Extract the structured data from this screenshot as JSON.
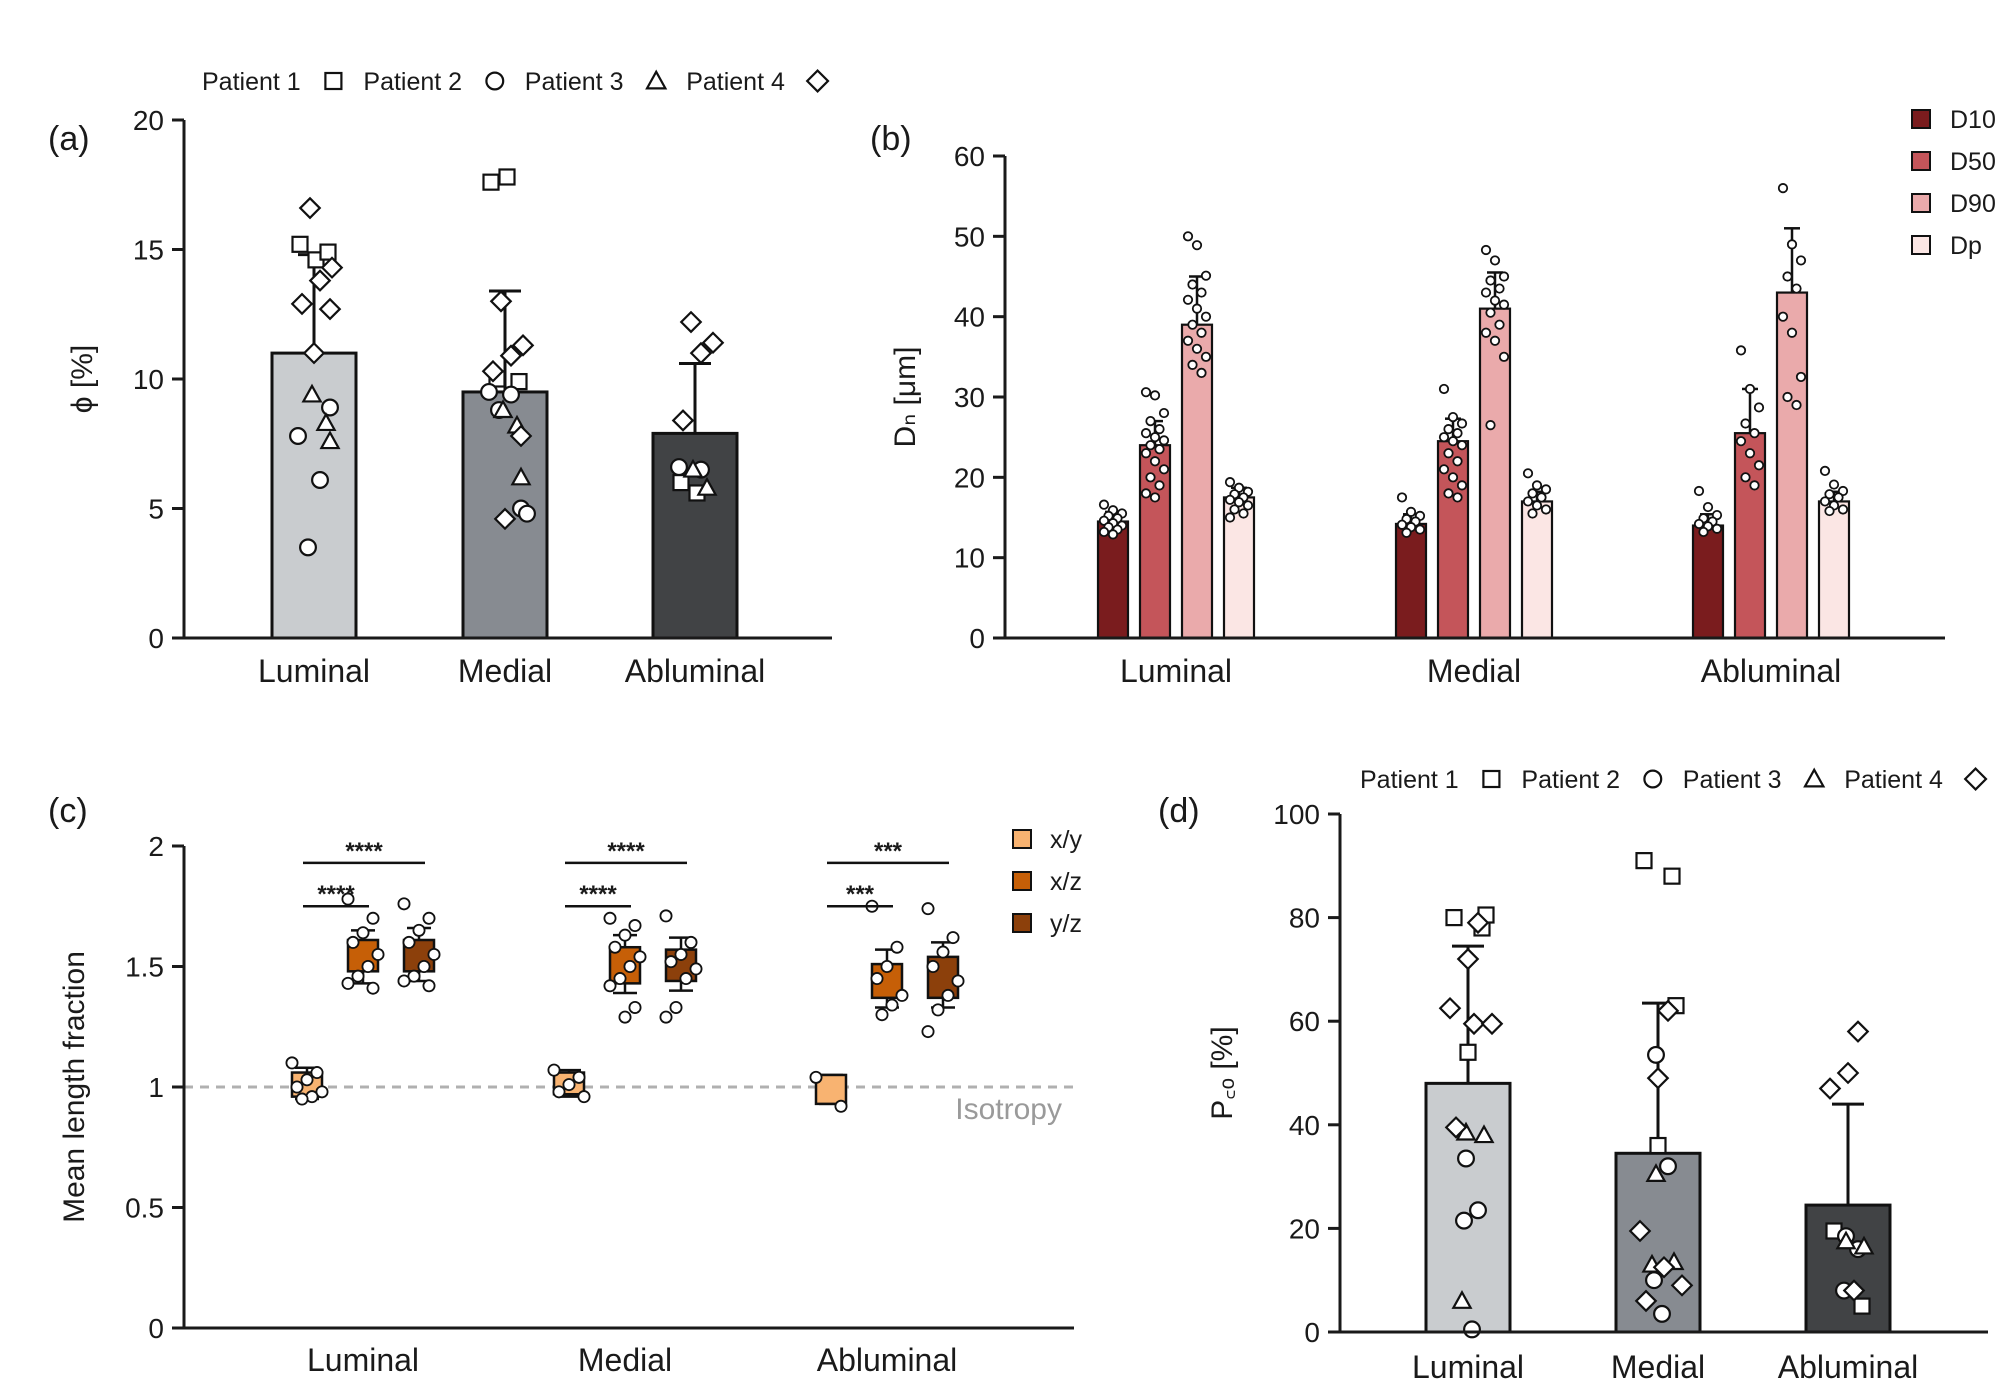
{
  "chart_data": [
    {
      "panel": "(a)",
      "type": "bar",
      "categories": [
        "Luminal",
        "Medial",
        "Abluminal"
      ],
      "ylabel": "ϕ [%]",
      "ylim": [
        0,
        20
      ],
      "yticks": [
        0,
        5,
        10,
        15,
        20
      ],
      "legend": [
        "Patient 1",
        "Patient 2",
        "Patient 3",
        "Patient 4"
      ],
      "legend_position": "top",
      "values": [
        11.0,
        9.5,
        7.9
      ],
      "errors": [
        3.8,
        3.9,
        2.7
      ],
      "colors": [
        "#c9cccf",
        "#878b91",
        "#414345"
      ],
      "points": [
        {
          "p1": [
            15.2,
            14.6,
            14.9
          ],
          "p2": [
            7.8,
            6.1,
            3.5,
            8.9
          ],
          "p3": [
            9.4,
            8.3,
            7.6
          ],
          "p4": [
            16.6,
            14.3,
            13.8,
            12.9,
            12.7,
            11.0
          ]
        },
        {
          "p1": [
            17.6,
            17.8,
            9.9,
            10.0
          ],
          "p2": [
            9.5,
            9.4,
            8.8,
            5.0,
            4.8
          ],
          "p3": [
            8.8,
            8.2,
            6.2
          ],
          "p4": [
            13.0,
            11.3,
            10.9,
            10.3,
            7.8,
            4.6
          ]
        },
        {
          "p1": [
            6.0,
            5.6
          ],
          "p2": [
            6.6,
            6.5
          ],
          "p3": [
            6.5,
            5.8
          ],
          "p4": [
            12.2,
            11.4,
            11.0,
            8.4
          ]
        }
      ]
    },
    {
      "panel": "(b)",
      "type": "bar",
      "categories": [
        "Luminal",
        "Medial",
        "Abluminal"
      ],
      "ylabel": "Dₙ [μm]",
      "ylim": [
        0,
        60
      ],
      "yticks": [
        0,
        10,
        20,
        30,
        40,
        50,
        60
      ],
      "series": [
        {
          "name": "D10",
          "color": "#7a1c1e",
          "values": [
            14.5,
            14.2,
            14.0
          ],
          "errors": [
            1.2,
            1.2,
            1.4
          ]
        },
        {
          "name": "D50",
          "color": "#c4555a",
          "values": [
            24.0,
            24.5,
            25.5
          ],
          "errors": [
            3.0,
            2.8,
            5.5
          ]
        },
        {
          "name": "D90",
          "color": "#eaaaab",
          "values": [
            39.0,
            41.0,
            43.0
          ],
          "errors": [
            6.0,
            4.5,
            8.0
          ]
        },
        {
          "name": "Dp",
          "color": "#fbe6e4",
          "values": [
            17.5,
            17.0,
            17.0
          ],
          "errors": [
            1.2,
            1.2,
            1.2
          ]
        }
      ],
      "points": [
        [
          [
            16.6,
            15.9,
            15.5,
            15.2,
            14.9,
            14.6,
            14.3,
            14.0,
            13.8,
            13.5,
            13.2,
            12.9
          ],
          [
            30.6,
            30.2,
            28.0,
            27.0,
            26.0,
            25.5,
            25.0,
            24.6,
            24.0,
            23.5,
            23.0,
            22.0,
            21.0,
            20.0,
            19.0,
            18.0,
            17.5
          ],
          [
            50.0,
            48.9,
            45.1,
            44.0,
            43.0,
            42.1,
            41.0,
            40.0,
            39.0,
            38.0,
            37.0,
            36.0,
            35.0,
            34.0,
            33.0
          ],
          [
            19.4,
            18.7,
            18.2,
            17.9,
            17.5,
            17.2,
            16.9,
            16.5,
            16.0,
            15.5,
            15.0
          ]
        ],
        [
          [
            17.5,
            15.7,
            15.2,
            14.8,
            14.5,
            14.1,
            13.8,
            13.5,
            13.1
          ],
          [
            31.0,
            27.5,
            26.7,
            26.0,
            25.5,
            25.0,
            24.5,
            24.0,
            23.0,
            22.0,
            21.0,
            20.0,
            19.0,
            18.0,
            17.5
          ],
          [
            48.3,
            47.0,
            45.0,
            44.5,
            43.5,
            43.0,
            42.0,
            41.5,
            40.5,
            39.0,
            38.0,
            37.0,
            35.0,
            26.5
          ],
          [
            20.5,
            19.0,
            18.5,
            18.0,
            17.5,
            17.0,
            16.5,
            16.0,
            15.5
          ]
        ],
        [
          [
            18.3,
            16.3,
            15.3,
            14.9,
            14.5,
            14.2,
            13.9,
            13.6,
            13.2
          ],
          [
            35.8,
            31.0,
            28.7,
            26.7,
            25.5,
            24.5,
            23.0,
            21.5,
            20.0,
            19.0
          ],
          [
            56.0,
            49.0,
            47.0,
            45.0,
            43.5,
            40.0,
            38.0,
            32.5,
            30.0,
            29.0
          ],
          [
            20.8,
            19.1,
            18.3,
            17.9,
            17.5,
            17.0,
            16.5,
            16.0,
            15.8
          ]
        ]
      ]
    },
    {
      "panel": "(c)",
      "type": "box",
      "categories": [
        "Luminal",
        "Medial",
        "Abluminal"
      ],
      "ylabel": "Mean length fraction",
      "ylim": [
        0,
        2
      ],
      "yticks": [
        "0",
        "0.5",
        "1",
        "1.5",
        "2"
      ],
      "reference_line": {
        "y": 1,
        "label": "Isotropy"
      },
      "series": [
        {
          "name": "x/y",
          "color": "#f8b371"
        },
        {
          "name": "x/z",
          "color": "#c65f07"
        },
        {
          "name": "y/z",
          "color": "#8c400b"
        }
      ],
      "boxes": [
        [
          {
            "q1": 0.96,
            "median": 1.01,
            "q3": 1.06,
            "low": 0.95,
            "high": 1.08
          },
          {
            "q1": 1.48,
            "median": 1.56,
            "q3": 1.61,
            "low": 1.43,
            "high": 1.65
          },
          {
            "q1": 1.48,
            "median": 1.56,
            "q3": 1.61,
            "low": 1.44,
            "high": 1.66
          }
        ],
        [
          {
            "q1": 0.97,
            "median": 1.0,
            "q3": 1.06,
            "low": 0.96,
            "high": 1.07
          },
          {
            "q1": 1.43,
            "median": 1.51,
            "q3": 1.58,
            "low": 1.39,
            "high": 1.63
          },
          {
            "q1": 1.44,
            "median": 1.51,
            "q3": 1.57,
            "low": 1.4,
            "high": 1.62
          }
        ],
        [
          {
            "q1": 0.93,
            "median": 0.99,
            "q3": 1.05,
            "low": 0.93,
            "high": 1.05
          },
          {
            "q1": 1.37,
            "median": 1.45,
            "q3": 1.51,
            "low": 1.33,
            "high": 1.57
          },
          {
            "q1": 1.37,
            "median": 1.47,
            "q3": 1.54,
            "low": 1.33,
            "high": 1.6
          }
        ]
      ],
      "points": [
        [
          [
            1.1,
            1.06,
            1.03,
            1.0,
            0.98,
            0.96,
            0.95
          ],
          [
            1.78,
            1.7,
            1.64,
            1.6,
            1.55,
            1.5,
            1.46,
            1.43,
            1.41
          ],
          [
            1.76,
            1.7,
            1.65,
            1.6,
            1.55,
            1.5,
            1.46,
            1.44,
            1.42
          ]
        ],
        [
          [
            1.07,
            1.04,
            1.01,
            0.98,
            0.96
          ],
          [
            1.7,
            1.67,
            1.63,
            1.58,
            1.54,
            1.5,
            1.45,
            1.42,
            1.33,
            1.29
          ],
          [
            1.71,
            1.6,
            1.55,
            1.52,
            1.49,
            1.45,
            1.33,
            1.29
          ]
        ],
        [
          [
            1.04,
            0.92
          ],
          [
            1.75,
            1.58,
            1.5,
            1.45,
            1.38,
            1.34,
            1.3
          ],
          [
            1.74,
            1.62,
            1.56,
            1.5,
            1.44,
            1.38,
            1.32,
            1.23
          ]
        ]
      ],
      "significance": [
        {
          "group": 0,
          "pair": [
            0,
            2
          ],
          "label": "****",
          "y": 1.98
        },
        {
          "group": 0,
          "pair": [
            0,
            1
          ],
          "label": "****",
          "y": 1.8
        },
        {
          "group": 1,
          "pair": [
            0,
            2
          ],
          "label": "****",
          "y": 1.98
        },
        {
          "group": 1,
          "pair": [
            0,
            1
          ],
          "label": "****",
          "y": 1.8
        },
        {
          "group": 2,
          "pair": [
            0,
            2
          ],
          "label": "***",
          "y": 1.98
        },
        {
          "group": 2,
          "pair": [
            0,
            1
          ],
          "label": "***",
          "y": 1.8
        }
      ]
    },
    {
      "panel": "(d)",
      "type": "bar",
      "categories": [
        "Luminal",
        "Medial",
        "Abluminal"
      ],
      "ylabel": "P꜀ₒ [%]",
      "ylim": [
        0,
        100
      ],
      "yticks": [
        0,
        20,
        40,
        60,
        80,
        100
      ],
      "legend": [
        "Patient 1",
        "Patient 2",
        "Patient 3",
        "Patient 4"
      ],
      "legend_position": "top",
      "values": [
        48.0,
        34.5,
        24.5
      ],
      "errors": [
        26.5,
        29.0,
        19.5
      ],
      "colors": [
        "#c9cccf",
        "#878b91",
        "#414345"
      ],
      "points": [
        {
          "p1": [
            80.0,
            78.0,
            80.5,
            54.0
          ],
          "p2": [
            33.5,
            23.5,
            21.5,
            0.5
          ],
          "p3": [
            38.5,
            38.0,
            6.0
          ],
          "p4": [
            79.0,
            72.0,
            62.5,
            59.5,
            59.5,
            39.5
          ]
        },
        {
          "p1": [
            91.0,
            88.0,
            63.0,
            36.0
          ],
          "p2": [
            53.5,
            32.0,
            10.0,
            3.5
          ],
          "p3": [
            30.5,
            13.5,
            13.0
          ],
          "p4": [
            62.0,
            49.0,
            19.5,
            12.5,
            9.0,
            6.0
          ]
        },
        {
          "p1": [
            19.5,
            5.0
          ],
          "p2": [
            18.5,
            16.0,
            8.0
          ],
          "p3": [
            17.5,
            16.5
          ],
          "p4": [
            58.0,
            50.0,
            47.0,
            8.0
          ]
        }
      ]
    }
  ]
}
